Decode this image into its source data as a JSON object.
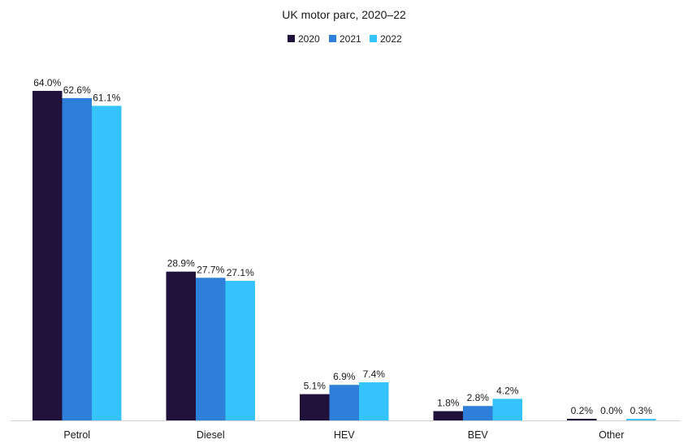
{
  "chart_data": {
    "type": "bar",
    "title": "UK motor parc, 2020–22",
    "xlabel": "",
    "ylabel": "",
    "ylim": [
      0,
      64
    ],
    "grid": false,
    "legend_position": "top-center",
    "categories": [
      "Petrol",
      "Diesel",
      "HEV",
      "BEV",
      "Other"
    ],
    "series": [
      {
        "name": "2020",
        "color": "#20123a",
        "values": [
          64.0,
          28.9,
          5.1,
          1.8,
          0.2
        ],
        "labels": [
          "64.0%",
          "28.9%",
          "5.1%",
          "1.8%",
          "0.2%"
        ]
      },
      {
        "name": "2021",
        "color": "#2d7fd9",
        "values": [
          62.6,
          27.7,
          6.9,
          2.8,
          0.0
        ],
        "labels": [
          "62.6%",
          "27.7%",
          "6.9%",
          "2.8%",
          "0.0%"
        ]
      },
      {
        "name": "2022",
        "color": "#35c3fb",
        "values": [
          61.1,
          27.1,
          7.4,
          4.2,
          0.3
        ],
        "labels": [
          "61.1%",
          "27.1%",
          "7.4%",
          "4.2%",
          "0.3%"
        ]
      }
    ]
  }
}
